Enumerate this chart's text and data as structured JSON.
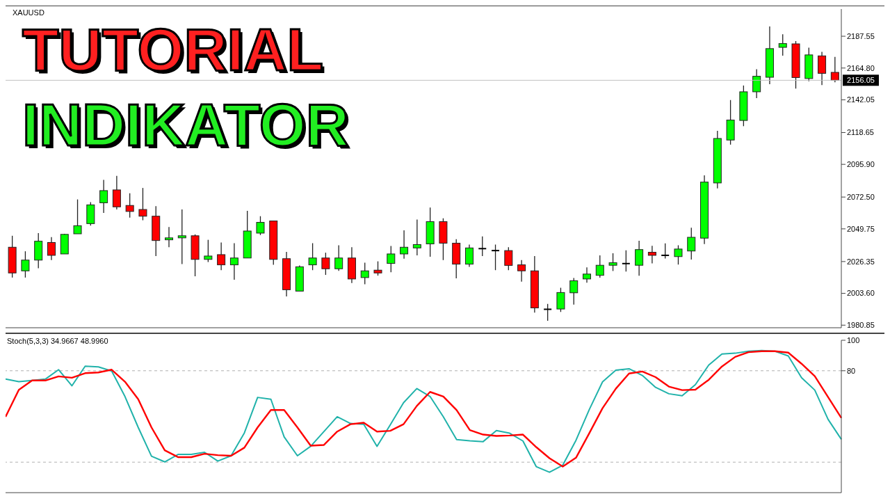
{
  "chart_data": [
    {
      "type": "candlestick",
      "title": "TUTORIAL",
      "subtitle": "INDIKATOR",
      "annotations": [
        "XAUUSD"
      ],
      "tick_labels": "y",
      "categories": [
        null,
        null,
        null,
        null,
        null,
        null,
        null,
        null,
        null,
        null,
        null,
        null,
        null,
        null,
        null,
        null,
        null,
        null,
        null,
        null,
        null,
        null,
        null,
        null,
        null,
        null,
        null,
        null,
        null,
        null,
        null,
        null,
        null,
        null,
        null,
        null,
        null,
        null,
        null,
        null,
        null,
        null,
        null,
        null,
        null,
        null,
        null,
        null,
        null,
        null,
        null,
        null,
        null,
        null,
        null,
        null,
        null,
        null,
        null,
        null,
        null,
        null,
        null,
        null
      ],
      "ohlc": [
        [
          2036.6,
          2044.8,
          2014.9,
          2018.2
        ],
        [
          2019.7,
          2033.7,
          2014.9,
          2027.4
        ],
        [
          2027.4,
          2046.7,
          2021.6,
          2040.9
        ],
        [
          2040.0,
          2043.8,
          2027.4,
          2030.8
        ],
        [
          2031.8,
          2046.2,
          2031.8,
          2045.8
        ],
        [
          2046.2,
          2070.8,
          2046.2,
          2052.0
        ],
        [
          2053.5,
          2068.9,
          2052.0,
          2066.9
        ],
        [
          2068.4,
          2084.8,
          2061.2,
          2077.1
        ],
        [
          2077.6,
          2087.7,
          2063.6,
          2065.5
        ],
        [
          2066.5,
          2075.2,
          2057.8,
          2062.2
        ],
        [
          2063.6,
          2079.0,
          2055.9,
          2058.8
        ],
        [
          2058.8,
          2066.0,
          2030.3,
          2041.4
        ],
        [
          2041.9,
          2051.1,
          2036.6,
          2043.3
        ],
        [
          2043.3,
          2063.6,
          2024.5,
          2044.8
        ],
        [
          2044.8,
          2045.8,
          2015.8,
          2027.9
        ],
        [
          2027.9,
          2041.9,
          2026.0,
          2030.3
        ],
        [
          2031.3,
          2040.0,
          2020.2,
          2024.0
        ],
        [
          2024.0,
          2039.5,
          2013.4,
          2028.9
        ],
        [
          2028.9,
          2062.6,
          2028.9,
          2048.2
        ],
        [
          2046.7,
          2058.8,
          2045.3,
          2054.4
        ],
        [
          2055.4,
          2055.4,
          2024.0,
          2027.9
        ],
        [
          2028.4,
          2033.2,
          2001.4,
          2006.2
        ],
        [
          2005.2,
          2023.6,
          2005.2,
          2022.6
        ],
        [
          2024.0,
          2039.5,
          2020.2,
          2028.9
        ],
        [
          2028.9,
          2032.7,
          2016.8,
          2021.2
        ],
        [
          2021.2,
          2038.0,
          2019.7,
          2028.9
        ],
        [
          2028.9,
          2036.6,
          2011.0,
          2013.9
        ],
        [
          2014.9,
          2025.5,
          2010.1,
          2019.7
        ],
        [
          2020.2,
          2026.5,
          2016.3,
          2018.2
        ],
        [
          2025.0,
          2037.5,
          2018.7,
          2031.8
        ],
        [
          2031.8,
          2048.7,
          2028.4,
          2036.6
        ],
        [
          2036.1,
          2056.4,
          2030.8,
          2038.5
        ],
        [
          2039.0,
          2065.0,
          2029.8,
          2054.9
        ],
        [
          2054.9,
          2057.3,
          2027.4,
          2039.5
        ],
        [
          2039.5,
          2042.4,
          2014.4,
          2024.5
        ],
        [
          2024.5,
          2038.5,
          2022.6,
          2036.1
        ],
        [
          2035.6,
          2044.3,
          2030.3,
          2035.6
        ],
        [
          2034.2,
          2038.5,
          2020.2,
          2034.2
        ],
        [
          2034.2,
          2036.6,
          2020.2,
          2023.6
        ],
        [
          2024.0,
          2027.4,
          2012.0,
          2019.7
        ],
        [
          2019.7,
          2030.3,
          1989.8,
          1993.2
        ],
        [
          1992.2,
          1996.1,
          1984.0,
          1992.2
        ],
        [
          1992.4,
          2007.6,
          1990.3,
          2004.2
        ],
        [
          2004.0,
          2014.6,
          1995.5,
          2012.6
        ],
        [
          2013.9,
          2022.2,
          2011.2,
          2017.4
        ],
        [
          2016.5,
          2030.8,
          2014.8,
          2023.7
        ],
        [
          2023.7,
          2032.3,
          2019.6,
          2025.5
        ],
        [
          2024.9,
          2034.4,
          2019.2,
          2024.9
        ],
        [
          2023.7,
          2041.2,
          2016.2,
          2034.9
        ],
        [
          2033.0,
          2037.6,
          2025.1,
          2030.8
        ],
        [
          2030.8,
          2039.4,
          2028.5,
          2030.8
        ],
        [
          2029.9,
          2038.0,
          2024.2,
          2035.3
        ],
        [
          2033.9,
          2050.5,
          2027.8,
          2043.7
        ],
        [
          2043.1,
          2088.0,
          2038.9,
          2083.2
        ],
        [
          2082.6,
          2119.9,
          2078.7,
          2114.4
        ],
        [
          2113.3,
          2141.9,
          2110.0,
          2127.6
        ],
        [
          2127.3,
          2152.3,
          2123.2,
          2147.8
        ],
        [
          2147.8,
          2163.9,
          2143.3,
          2158.9
        ],
        [
          2158.2,
          2194.6,
          2153.2,
          2178.7
        ],
        [
          2179.6,
          2188.9,
          2173.7,
          2182.3
        ],
        [
          2182.1,
          2184.1,
          2150.1,
          2158.0
        ],
        [
          2157.3,
          2179.4,
          2155.3,
          2174.2
        ],
        [
          2173.5,
          2176.4,
          2152.6,
          2161.0
        ],
        [
          2161.7,
          2172.8,
          2154.6,
          2156.05
        ]
      ],
      "colors": [
        "#ff0000",
        "#00ff00",
        "#00ff00",
        "#ff0000",
        "#00ff00",
        "#00ff00",
        "#00ff00",
        "#00ff00",
        "#ff0000",
        "#ff0000",
        "#ff0000",
        "#ff0000",
        "#00ff00",
        "#00ff00",
        "#ff0000",
        "#00ff00",
        "#ff0000",
        "#00ff00",
        "#00ff00",
        "#00ff00",
        "#ff0000",
        "#ff0000",
        "#00ff00",
        "#00ff00",
        "#ff0000",
        "#00ff00",
        "#ff0000",
        "#00ff00",
        "#ff0000",
        "#00ff00",
        "#00ff00",
        "#00ff00",
        "#00ff00",
        "#ff0000",
        "#ff0000",
        "#00ff00",
        "#000000",
        "#000000",
        "#ff0000",
        "#ff0000",
        "#ff0000",
        "#000000",
        "#00ff00",
        "#00ff00",
        "#00ff00",
        "#00ff00",
        "#00ff00",
        "#000000",
        "#00ff00",
        "#ff0000",
        "#000000",
        "#00ff00",
        "#00ff00",
        "#00ff00",
        "#00ff00",
        "#00ff00",
        "#00ff00",
        "#00ff00",
        "#00ff00",
        "#00ff00",
        "#ff0000",
        "#00ff00",
        "#ff0000",
        "#ff0000"
      ],
      "ylim": [
        1979,
        2207
      ],
      "yticks": [
        1980.85,
        {
          "value": 2003.6,
          "label": "2003.60"
        },
        2026.35,
        2049.75,
        {
          "value": 2072.5,
          "label": "2072.50"
        },
        {
          "value": 2095.9,
          "label": "2095.90"
        },
        2118.65,
        2142.05,
        {
          "value": 2164.8,
          "label": "2164.80"
        },
        2187.55
      ],
      "ref_lines": [
        {
          "axis": "y",
          "value": 2156.05,
          "label": "2156.05",
          "color": "#c0c0c0",
          "line_style": "solid"
        }
      ]
    },
    {
      "type": "line",
      "title": "Stoch(5,3,3) 34.9667 48.9960",
      "tick_labels": "y",
      "categories": [
        null,
        null,
        null,
        null,
        null,
        null,
        null,
        null,
        null,
        null,
        null,
        null,
        null,
        null,
        null,
        null,
        null,
        null,
        null,
        null,
        null,
        null,
        null,
        null,
        null,
        null,
        null,
        null,
        null,
        null,
        null,
        null,
        null,
        null,
        null,
        null,
        null,
        null,
        null,
        null,
        null,
        null,
        null,
        null,
        null,
        null,
        null,
        null,
        null,
        null,
        null,
        null,
        null,
        null,
        null,
        null,
        null,
        null,
        null,
        null,
        null,
        null,
        null,
        null
      ],
      "series": [
        {
          "color": "#20b2aa",
          "values": [
            74.5,
            72.8,
            73.6,
            74.5,
            80.7,
            70.1,
            83.0,
            82.5,
            79.8,
            63.1,
            42.8,
            23.9,
            20.2,
            25.1,
            25.1,
            26.5,
            20.7,
            24.2,
            39.2,
            62.5,
            61.3,
            36.6,
            24.2,
            30.4,
            40.1,
            49.8,
            45.4,
            44.9,
            30.4,
            44.5,
            59.0,
            68.3,
            63.1,
            49.8,
            34.8,
            34.0,
            33.5,
            40.8,
            39.0,
            33.9,
            17.1,
            13.4,
            18.0,
            34.4,
            54.5,
            72.7,
            80.4,
            81.3,
            76.9,
            69.1,
            64.9,
            63.6,
            70.9,
            83.7,
            91.0,
            91.5,
            92.8,
            93.3,
            92.8,
            89.7,
            75.5,
            67.3,
            48.1,
            35.0
          ]
        },
        {
          "color": "#ff0000",
          "values": [
            49.8,
            67.5,
            73.6,
            73.6,
            76.3,
            75.4,
            78.4,
            78.9,
            80.7,
            72.8,
            61.3,
            42.8,
            27.8,
            23.3,
            23.3,
            25.5,
            24.6,
            24.2,
            29.5,
            42.8,
            54.2,
            54.2,
            42.8,
            30.8,
            31.3,
            40.1,
            44.9,
            45.9,
            40.1,
            40.6,
            44.9,
            56.9,
            66.1,
            63.1,
            54.2,
            41.0,
            38.1,
            37.2,
            37.5,
            38.1,
            29.9,
            22.6,
            17.1,
            22.9,
            39.0,
            55.4,
            68.2,
            78.2,
            79.5,
            75.8,
            69.6,
            67.3,
            67.6,
            74.0,
            82.8,
            89.1,
            92.2,
            92.8,
            92.8,
            91.9,
            84.6,
            76.4,
            62.7,
            49.0
          ]
        }
      ],
      "ylim": [
        0,
        100
      ],
      "yticks": [
        100,
        80
      ],
      "ref_lines": [
        {
          "axis": "y",
          "value": 80,
          "color": "#b0b0b0",
          "line_style": "dashed"
        },
        {
          "axis": "y",
          "value": 20,
          "color": "#b0b0b0",
          "line_style": "dashed"
        }
      ]
    }
  ]
}
